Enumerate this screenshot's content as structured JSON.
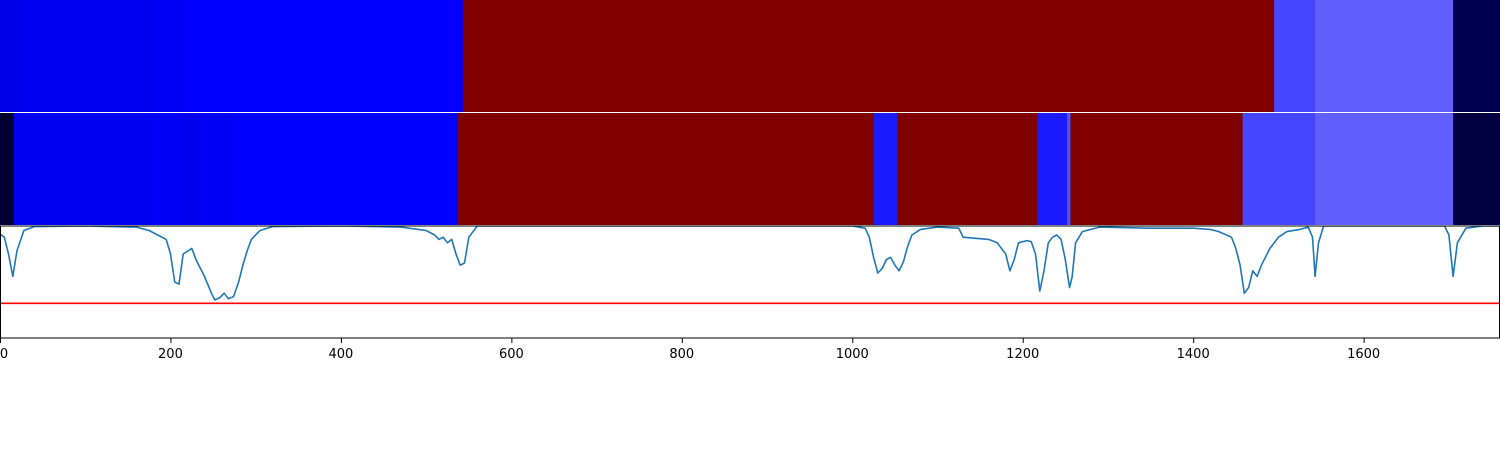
{
  "chart_data": {
    "type": "heatmap",
    "x_axis": {
      "range": [
        0,
        1760
      ],
      "ticks": [
        0,
        200,
        400,
        600,
        800,
        1000,
        1200,
        1400,
        1600
      ],
      "tick_labels": [
        "0",
        "200",
        "400",
        "600",
        "800",
        "1000",
        "1200",
        "1400",
        "1600"
      ]
    },
    "tracks": [
      {
        "kind": "segments",
        "segments": [
          {
            "start": 0,
            "end": 20,
            "color": "#0000e8"
          },
          {
            "start": 20,
            "end": 180,
            "color": "#0000f0"
          },
          {
            "start": 180,
            "end": 220,
            "color": "#0000f6"
          },
          {
            "start": 220,
            "end": 543,
            "color": "#0000ff"
          },
          {
            "start": 543,
            "end": 1495,
            "color": "#800000"
          },
          {
            "start": 1495,
            "end": 1543,
            "color": "#4646ff"
          },
          {
            "start": 1543,
            "end": 1705,
            "color": "#6060ff"
          },
          {
            "start": 1705,
            "end": 1760,
            "color": "#000050"
          }
        ]
      },
      {
        "kind": "segments",
        "segments": [
          {
            "start": 0,
            "end": 16,
            "color": "#000030"
          },
          {
            "start": 16,
            "end": 180,
            "color": "#0000f2"
          },
          {
            "start": 180,
            "end": 215,
            "color": "#0000f8"
          },
          {
            "start": 215,
            "end": 235,
            "color": "#0000ee"
          },
          {
            "start": 235,
            "end": 275,
            "color": "#0000f4"
          },
          {
            "start": 275,
            "end": 537,
            "color": "#0000ff"
          },
          {
            "start": 537,
            "end": 1025,
            "color": "#800000"
          },
          {
            "start": 1025,
            "end": 1053,
            "color": "#1a1aff"
          },
          {
            "start": 1053,
            "end": 1217,
            "color": "#800000"
          },
          {
            "start": 1217,
            "end": 1252,
            "color": "#1a1aff"
          },
          {
            "start": 1252,
            "end": 1256,
            "color": "#5050ff"
          },
          {
            "start": 1256,
            "end": 1458,
            "color": "#800000"
          },
          {
            "start": 1458,
            "end": 1543,
            "color": "#4646ff"
          },
          {
            "start": 1543,
            "end": 1705,
            "color": "#6060ff"
          },
          {
            "start": 1705,
            "end": 1760,
            "color": "#000040"
          }
        ]
      },
      {
        "kind": "line",
        "ylim": [
          0,
          1
        ],
        "line_color": "#1f77b4",
        "threshold": 0.31,
        "threshold_color": "#ff0000",
        "points": [
          [
            0,
            0.93
          ],
          [
            5,
            0.9
          ],
          [
            10,
            0.75
          ],
          [
            15,
            0.55
          ],
          [
            20,
            0.78
          ],
          [
            28,
            0.96
          ],
          [
            40,
            0.995
          ],
          [
            100,
            1.0
          ],
          [
            160,
            0.99
          ],
          [
            175,
            0.96
          ],
          [
            195,
            0.88
          ],
          [
            200,
            0.75
          ],
          [
            205,
            0.5
          ],
          [
            210,
            0.48
          ],
          [
            215,
            0.75
          ],
          [
            225,
            0.8
          ],
          [
            230,
            0.7
          ],
          [
            240,
            0.55
          ],
          [
            248,
            0.4
          ],
          [
            252,
            0.34
          ],
          [
            258,
            0.36
          ],
          [
            263,
            0.4
          ],
          [
            268,
            0.35
          ],
          [
            274,
            0.37
          ],
          [
            280,
            0.5
          ],
          [
            285,
            0.65
          ],
          [
            290,
            0.78
          ],
          [
            295,
            0.88
          ],
          [
            305,
            0.96
          ],
          [
            320,
            0.995
          ],
          [
            400,
            1.0
          ],
          [
            470,
            0.99
          ],
          [
            500,
            0.96
          ],
          [
            510,
            0.92
          ],
          [
            515,
            0.88
          ],
          [
            520,
            0.9
          ],
          [
            525,
            0.85
          ],
          [
            530,
            0.88
          ],
          [
            535,
            0.75
          ],
          [
            540,
            0.65
          ],
          [
            545,
            0.67
          ],
          [
            550,
            0.9
          ],
          [
            560,
            1.0
          ],
          [
            600,
            1.0
          ],
          [
            800,
            1.0
          ],
          [
            1000,
            1.0
          ],
          [
            1015,
            0.98
          ],
          [
            1020,
            0.9
          ],
          [
            1025,
            0.72
          ],
          [
            1030,
            0.58
          ],
          [
            1035,
            0.62
          ],
          [
            1040,
            0.7
          ],
          [
            1045,
            0.72
          ],
          [
            1050,
            0.65
          ],
          [
            1055,
            0.6
          ],
          [
            1060,
            0.68
          ],
          [
            1065,
            0.82
          ],
          [
            1070,
            0.92
          ],
          [
            1080,
            0.97
          ],
          [
            1100,
            0.99
          ],
          [
            1125,
            0.98
          ],
          [
            1130,
            0.9
          ],
          [
            1160,
            0.88
          ],
          [
            1170,
            0.85
          ],
          [
            1180,
            0.75
          ],
          [
            1185,
            0.6
          ],
          [
            1190,
            0.7
          ],
          [
            1195,
            0.85
          ],
          [
            1205,
            0.87
          ],
          [
            1210,
            0.86
          ],
          [
            1215,
            0.75
          ],
          [
            1218,
            0.55
          ],
          [
            1220,
            0.42
          ],
          [
            1225,
            0.6
          ],
          [
            1230,
            0.85
          ],
          [
            1235,
            0.9
          ],
          [
            1240,
            0.92
          ],
          [
            1245,
            0.88
          ],
          [
            1250,
            0.7
          ],
          [
            1255,
            0.45
          ],
          [
            1258,
            0.55
          ],
          [
            1262,
            0.85
          ],
          [
            1270,
            0.95
          ],
          [
            1290,
            0.99
          ],
          [
            1350,
            0.98
          ],
          [
            1400,
            0.98
          ],
          [
            1420,
            0.97
          ],
          [
            1430,
            0.95
          ],
          [
            1445,
            0.9
          ],
          [
            1450,
            0.8
          ],
          [
            1455,
            0.65
          ],
          [
            1460,
            0.4
          ],
          [
            1465,
            0.45
          ],
          [
            1470,
            0.6
          ],
          [
            1475,
            0.55
          ],
          [
            1480,
            0.65
          ],
          [
            1490,
            0.8
          ],
          [
            1500,
            0.9
          ],
          [
            1510,
            0.95
          ],
          [
            1525,
            0.97
          ],
          [
            1535,
            0.99
          ],
          [
            1540,
            0.9
          ],
          [
            1543,
            0.55
          ],
          [
            1547,
            0.85
          ],
          [
            1553,
            1.0
          ],
          [
            1600,
            1.0
          ],
          [
            1695,
            1.0
          ],
          [
            1700,
            0.92
          ],
          [
            1705,
            0.55
          ],
          [
            1710,
            0.85
          ],
          [
            1720,
            0.98
          ],
          [
            1740,
            1.0
          ],
          [
            1760,
            1.0
          ]
        ]
      }
    ]
  }
}
